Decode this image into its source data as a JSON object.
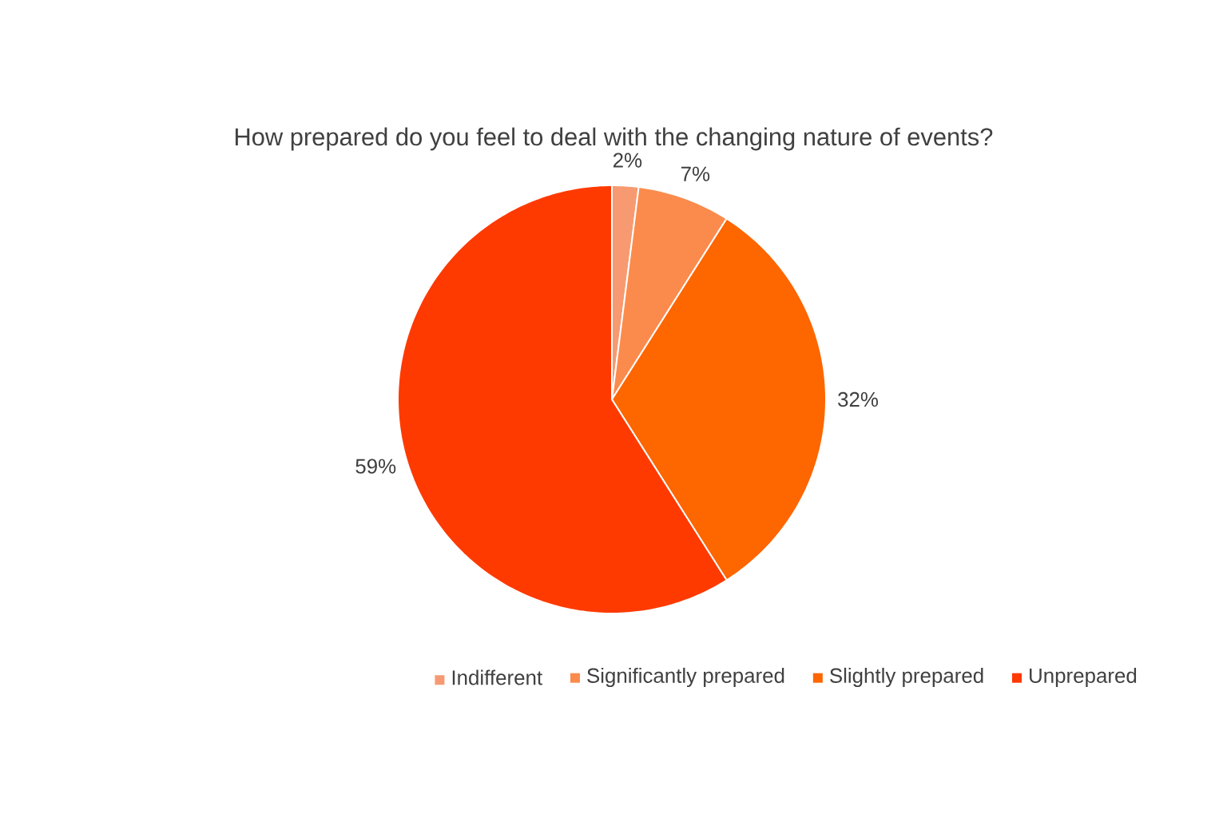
{
  "chart_data": {
    "type": "pie",
    "title": "How prepared do you feel to deal with the changing nature of events?",
    "categories": [
      "Indifferent",
      "Significantly prepared",
      "Slightly prepared",
      "Unprepared"
    ],
    "values": [
      2,
      7,
      32,
      59
    ],
    "value_labels": [
      "2%",
      "7%",
      "32%",
      "59%"
    ],
    "colors": [
      "#f79a72",
      "#fb8b4c",
      "#fe6600",
      "#fe3a00"
    ],
    "legend": "bottom"
  }
}
